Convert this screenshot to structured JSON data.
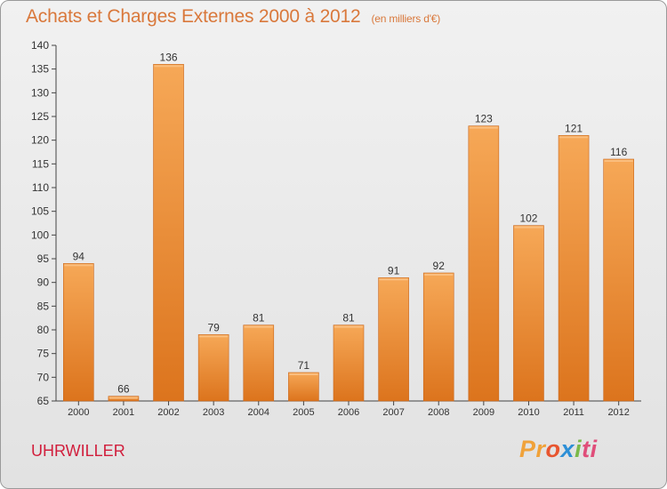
{
  "header": {
    "title": "Achats et Charges Externes 2000 à 2012",
    "unit": "(en milliers d'€)"
  },
  "footer": {
    "commune": "UHRWILLER",
    "logo": {
      "p1": "Pr",
      "p2": "o",
      "p3": "x",
      "p4": "i",
      "p5": "ti"
    }
  },
  "colors": {
    "title": "#d9783b",
    "bar_top": "#f6a857",
    "bar_bottom": "#dc741d",
    "bar_edge": "#c9661c",
    "commune": "#d11e3c"
  },
  "chart_data": {
    "type": "bar",
    "categories": [
      "2000",
      "2001",
      "2002",
      "2003",
      "2004",
      "2005",
      "2006",
      "2007",
      "2008",
      "2009",
      "2010",
      "2011",
      "2012"
    ],
    "values": [
      94,
      66,
      136,
      79,
      81,
      71,
      81,
      91,
      92,
      123,
      102,
      121,
      116
    ],
    "title": "Achats et Charges Externes 2000 à 2012",
    "xlabel": "",
    "ylabel": "",
    "ylim": [
      65,
      140
    ],
    "yticks": [
      65,
      70,
      75,
      80,
      85,
      90,
      95,
      100,
      105,
      110,
      115,
      120,
      125,
      130,
      135,
      140
    ],
    "grid": false,
    "legend": "none"
  }
}
